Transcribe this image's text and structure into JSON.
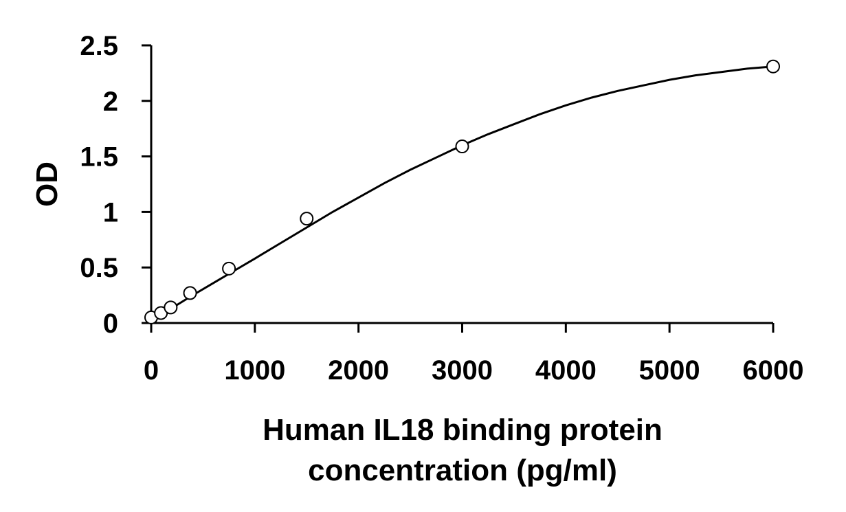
{
  "chart_data": {
    "type": "scatter",
    "title": "",
    "xlabel_lines": [
      "Human IL18 binding protein",
      "concentration (pg/ml)"
    ],
    "ylabel": "OD",
    "xlim": [
      0,
      6000
    ],
    "ylim": [
      0,
      2.5
    ],
    "x_ticks": [
      0,
      1000,
      2000,
      3000,
      4000,
      5000,
      6000
    ],
    "x_tick_labels": [
      "0",
      "1000",
      "2000",
      "3000",
      "4000",
      "5000",
      "6000"
    ],
    "y_ticks": [
      0,
      0.5,
      1,
      1.5,
      2,
      2.5
    ],
    "y_tick_labels": [
      "0",
      "0.5",
      "1",
      "1.5",
      "2",
      "2.5"
    ],
    "grid": false,
    "legend": false,
    "series": [
      {
        "style": "open-circle markers with smooth fitted curve",
        "x": [
          0,
          94,
          188,
          375,
          750,
          1500,
          3000,
          6000
        ],
        "y": [
          0.05,
          0.09,
          0.14,
          0.27,
          0.49,
          0.94,
          1.59,
          2.31
        ]
      }
    ],
    "fit_curve": {
      "x": [
        0,
        50,
        100,
        200,
        400,
        600,
        800,
        1000,
        1250,
        1500,
        1750,
        2000,
        2250,
        2500,
        2750,
        3000,
        3250,
        3500,
        3750,
        4000,
        4250,
        4500,
        4750,
        5000,
        5250,
        5500,
        5750,
        6000
      ],
      "y": [
        0.03,
        0.055,
        0.08,
        0.135,
        0.25,
        0.36,
        0.47,
        0.58,
        0.72,
        0.86,
        1.0,
        1.13,
        1.26,
        1.38,
        1.49,
        1.6,
        1.7,
        1.79,
        1.88,
        1.96,
        2.03,
        2.09,
        2.14,
        2.19,
        2.23,
        2.26,
        2.29,
        2.31
      ]
    }
  }
}
